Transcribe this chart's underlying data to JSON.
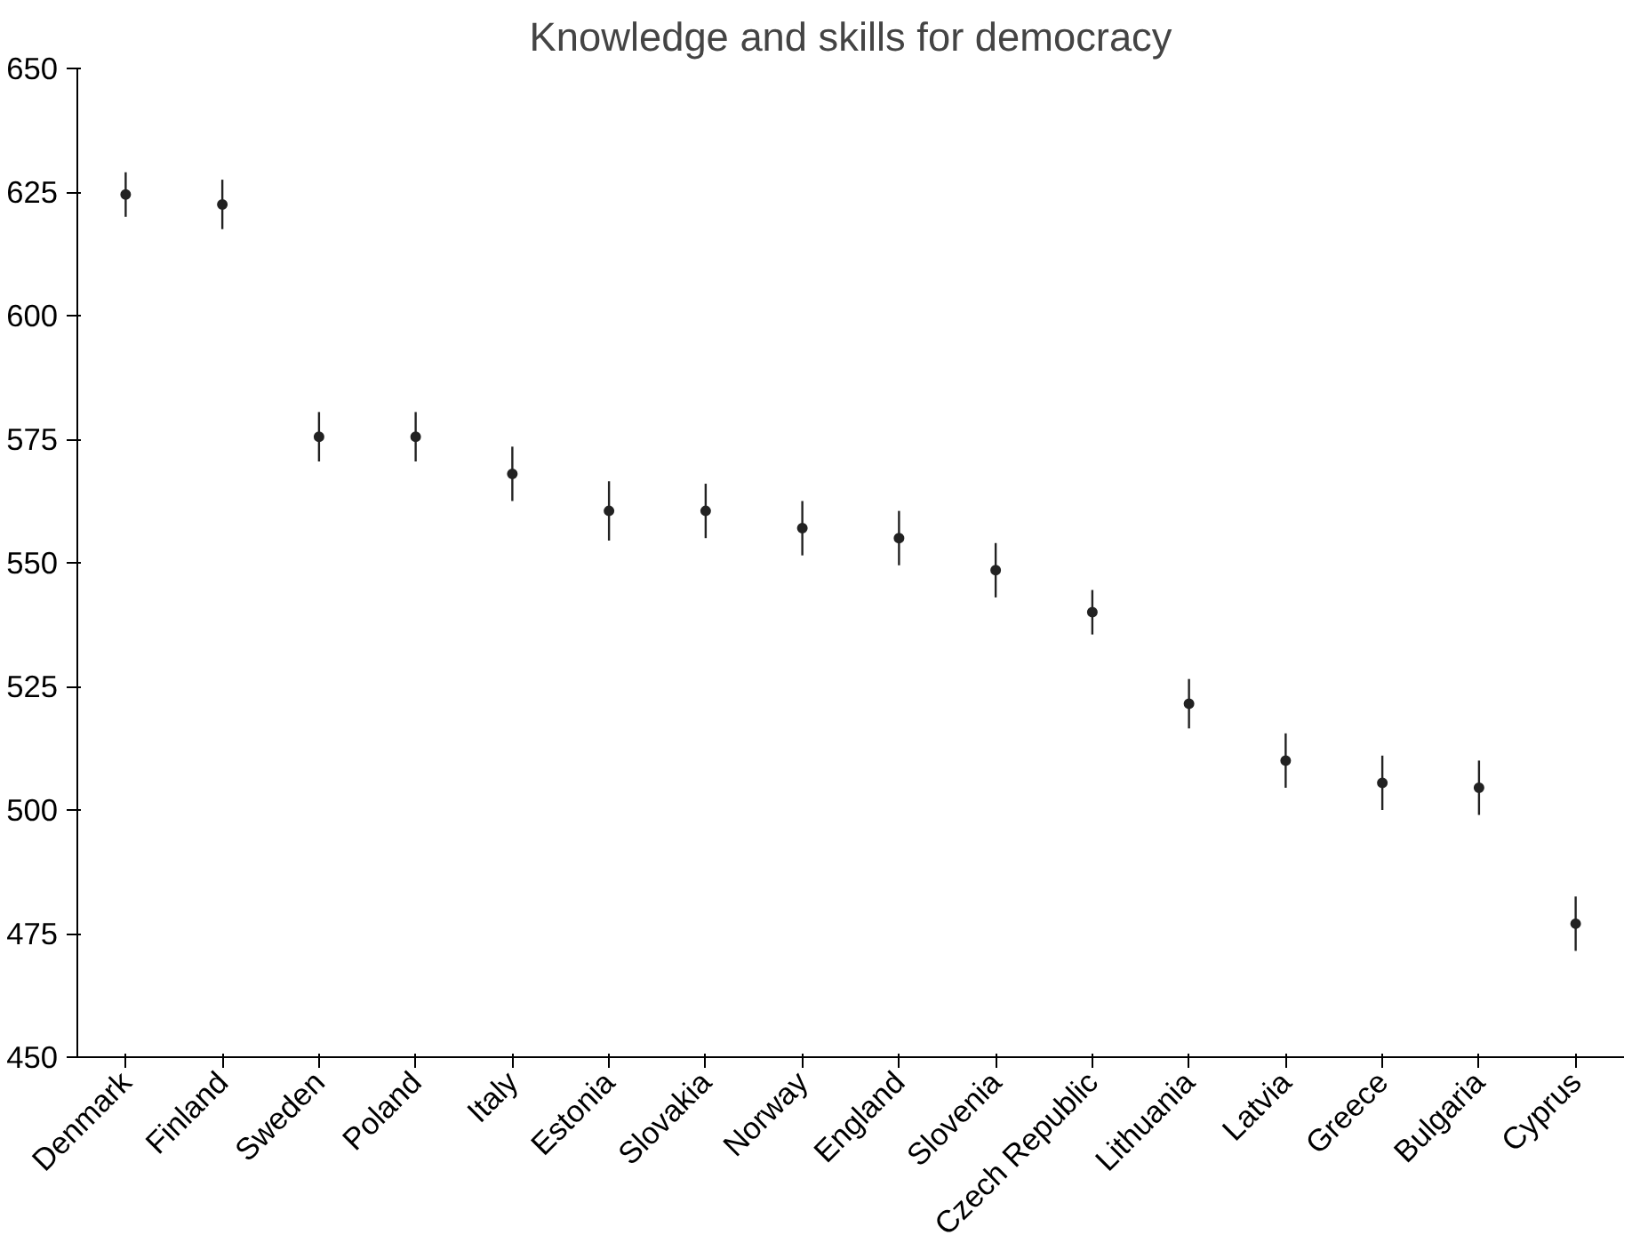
{
  "chart_data": {
    "type": "scatter",
    "title": "Knowledge and skills for democracy",
    "categories": [
      "Denmark",
      "Finland",
      "Sweden",
      "Poland",
      "Italy",
      "Estonia",
      "Slovakia",
      "Norway",
      "England",
      "Slovenia",
      "Czech Republic",
      "Lithuania",
      "Latvia",
      "Greece",
      "Bulgaria",
      "Cyprus"
    ],
    "values": [
      624.5,
      622.5,
      575.5,
      575.5,
      568,
      560.5,
      560.5,
      557,
      555,
      548.5,
      540,
      521.5,
      510,
      505.5,
      504.5,
      477
    ],
    "errors": [
      4.5,
      5,
      5,
      5,
      5.5,
      6,
      5.5,
      5.5,
      5.5,
      5.5,
      4.5,
      5,
      5.5,
      5.5,
      5.5,
      5.5
    ],
    "color": "#222222",
    "marker": "circle",
    "grid": false,
    "ylim": [
      450,
      650
    ],
    "yticks": [
      450,
      475,
      500,
      525,
      550,
      575,
      600,
      625,
      650
    ]
  }
}
